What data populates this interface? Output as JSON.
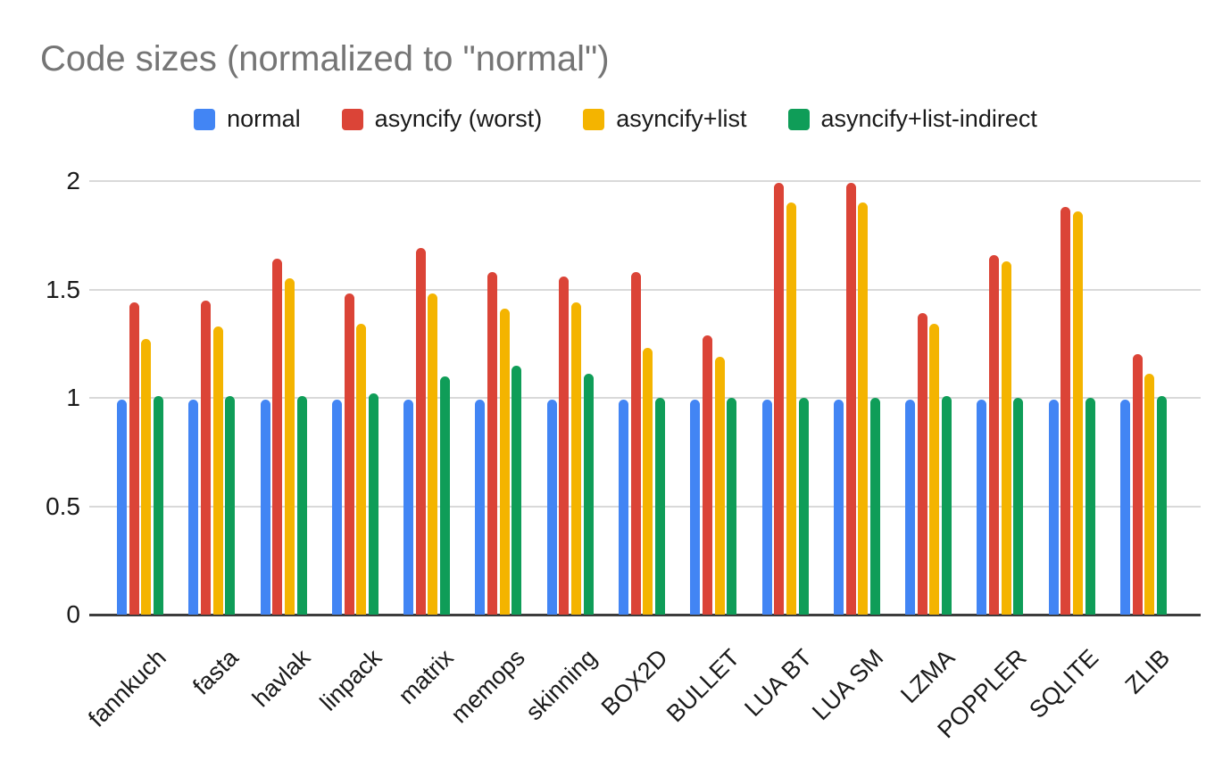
{
  "chart_data": {
    "type": "bar",
    "title": "Code sizes (normalized to \"normal\")",
    "categories": [
      "fannkuch",
      "fasta",
      "havlak",
      "linpack",
      "matrix",
      "memops",
      "skinning",
      "BOX2D",
      "BULLET",
      "LUA BT",
      "LUA SM",
      "LZMA",
      "POPPLER",
      "SQLITE",
      "ZLIB"
    ],
    "series": [
      {
        "name": "normal",
        "color": "#4285f4",
        "values": [
          0.99,
          0.99,
          0.99,
          0.99,
          0.99,
          0.99,
          0.99,
          0.99,
          0.99,
          0.99,
          0.99,
          0.99,
          0.99,
          0.99,
          0.99
        ]
      },
      {
        "name": "asyncify (worst)",
        "color": "#db4437",
        "values": [
          1.44,
          1.45,
          1.64,
          1.48,
          1.69,
          1.58,
          1.56,
          1.58,
          1.29,
          1.99,
          1.99,
          1.39,
          1.66,
          1.88,
          1.2
        ]
      },
      {
        "name": "asyncify+list",
        "color": "#f4b400",
        "values": [
          1.27,
          1.33,
          1.55,
          1.34,
          1.48,
          1.41,
          1.44,
          1.23,
          1.19,
          1.9,
          1.9,
          1.34,
          1.63,
          1.86,
          1.11
        ]
      },
      {
        "name": "asyncify+list-indirect",
        "color": "#0f9d58",
        "values": [
          1.01,
          1.01,
          1.01,
          1.02,
          1.1,
          1.15,
          1.11,
          1.0,
          1.0,
          1.0,
          1.0,
          1.01,
          1.0,
          1.0,
          1.01
        ]
      }
    ],
    "xlabel": "",
    "ylabel": "",
    "ylim": [
      0,
      2
    ],
    "yticks": [
      0,
      0.5,
      1,
      1.5,
      2
    ],
    "grid": true,
    "legend_position": "top",
    "axis_colors": {
      "gridline": "#d9d9d9",
      "baseline": "#3c3c3c",
      "tick_text": "#1a1a1a",
      "title_text": "#757575"
    }
  }
}
